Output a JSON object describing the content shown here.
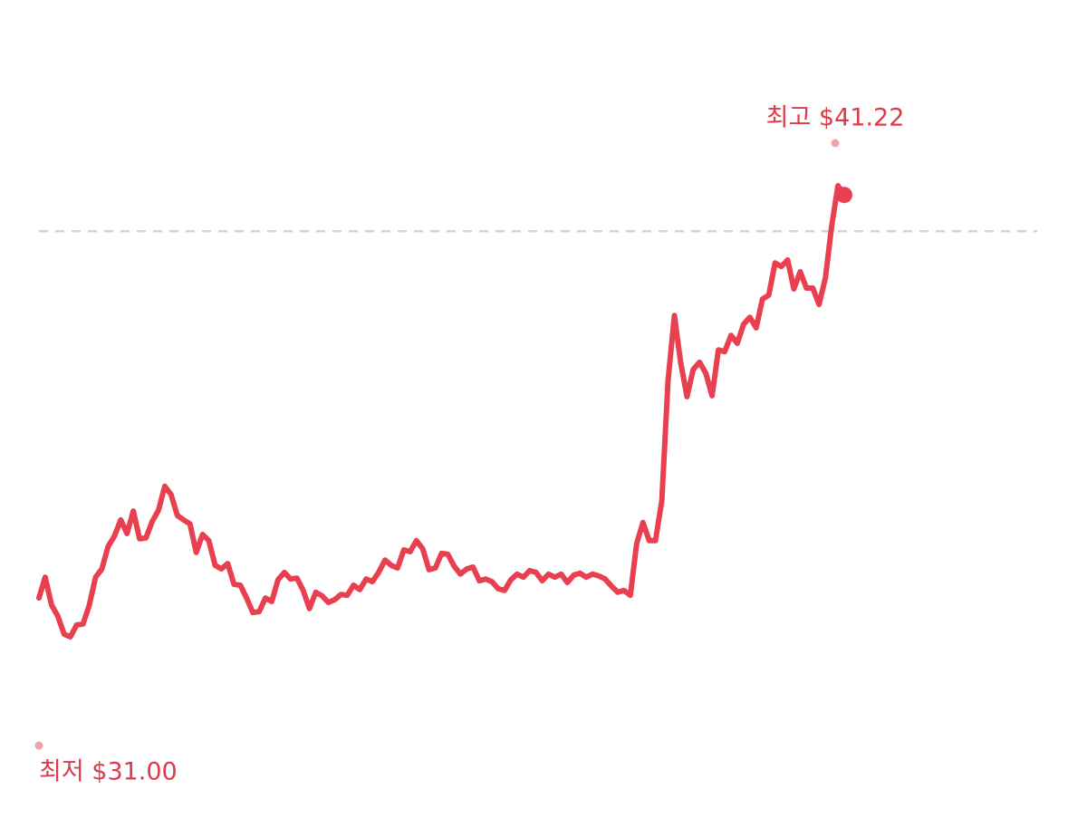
{
  "chart_data": {
    "type": "line",
    "color": "#e8404f",
    "values": [
      31.88,
      32.35,
      31.72,
      31.47,
      31.06,
      31.0,
      31.27,
      31.29,
      31.72,
      32.35,
      32.54,
      33.05,
      33.28,
      33.65,
      33.34,
      33.85,
      33.22,
      33.24,
      33.61,
      33.87,
      34.41,
      34.22,
      33.75,
      33.65,
      33.56,
      32.91,
      33.32,
      33.18,
      32.62,
      32.54,
      32.66,
      32.19,
      32.17,
      31.88,
      31.55,
      31.57,
      31.88,
      31.8,
      32.29,
      32.46,
      32.31,
      32.33,
      32.05,
      31.64,
      32.01,
      31.93,
      31.78,
      31.84,
      31.96,
      31.94,
      32.17,
      32.07,
      32.31,
      32.25,
      32.46,
      32.74,
      32.62,
      32.56,
      32.97,
      32.93,
      33.18,
      32.99,
      32.52,
      32.56,
      32.89,
      32.87,
      32.6,
      32.42,
      32.54,
      32.58,
      32.27,
      32.31,
      32.25,
      32.09,
      32.05,
      32.29,
      32.42,
      32.35,
      32.5,
      32.46,
      32.27,
      32.42,
      32.35,
      32.42,
      32.23,
      32.4,
      32.44,
      32.35,
      32.42,
      32.38,
      32.31,
      32.15,
      32.01,
      32.05,
      31.94,
      33.11,
      33.59,
      33.18,
      33.18,
      34.08,
      36.81,
      38.28,
      37.22,
      36.44,
      37.06,
      37.22,
      36.97,
      36.46,
      37.5,
      37.46,
      37.83,
      37.65,
      38.08,
      38.24,
      38.0,
      38.65,
      38.74,
      39.47,
      39.39,
      39.54,
      38.88,
      39.27,
      38.9,
      38.9,
      38.53,
      39.13,
      40.3,
      41.22,
      41.01
    ],
    "reference_line": 40.19,
    "annotations": [
      {
        "text": "최고 $41.22",
        "value": 41.22,
        "kind": "high"
      },
      {
        "text": "최저 $31.00",
        "value": 31.0,
        "kind": "low"
      }
    ]
  }
}
